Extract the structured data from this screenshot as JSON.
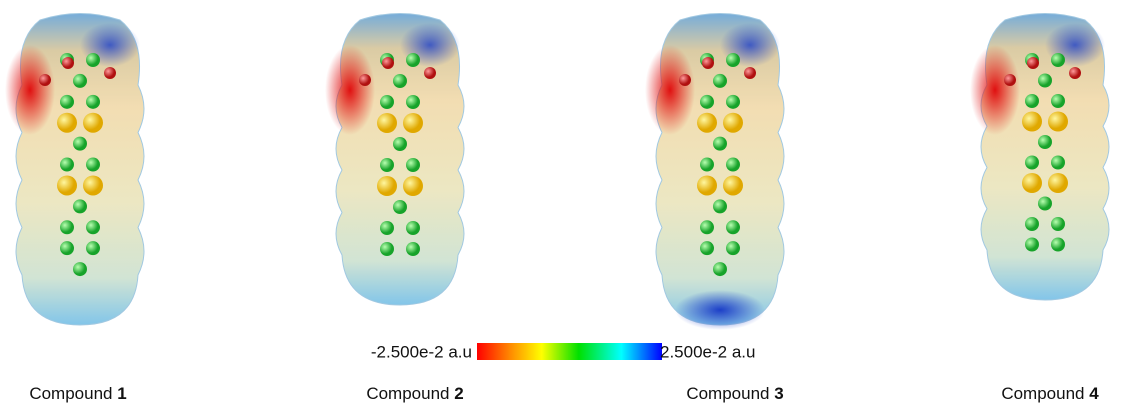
{
  "colorbar": {
    "min_label": "-2.500e-2 a.u",
    "max_label": "2.500e-2 a.u"
  },
  "panels": [
    {
      "label": "Compound",
      "number": "1"
    },
    {
      "label": "Compound",
      "number": "2"
    },
    {
      "label": "Compound",
      "number": "3"
    },
    {
      "label": "Compound",
      "number": "4"
    }
  ]
}
